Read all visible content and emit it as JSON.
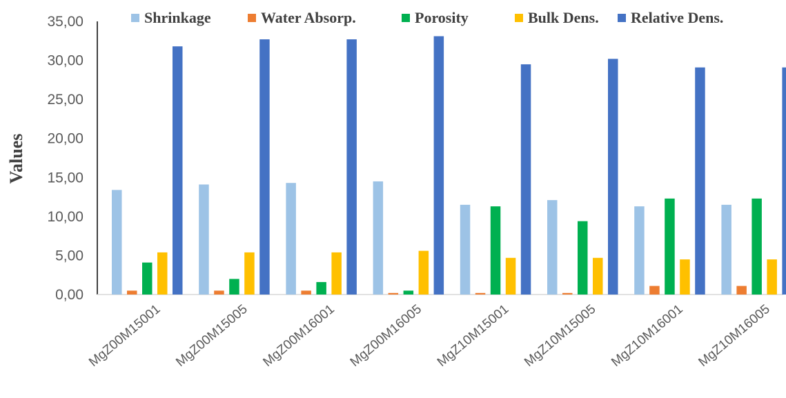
{
  "chart_data": {
    "type": "bar",
    "ylabel": "Values",
    "xlabel": "",
    "ylim": [
      0,
      35
    ],
    "yticks": [
      "0,00",
      "5,00",
      "10,00",
      "15,00",
      "20,00",
      "25,00",
      "30,00",
      "35,00"
    ],
    "categories": [
      "MgZ00M15001",
      "MgZ00M15005",
      "MgZ00M16001",
      "MgZ00M16005",
      "MgZ10M15001",
      "MgZ10M15005",
      "MgZ10M16001",
      "MgZ10M16005"
    ],
    "series": [
      {
        "name": "Shrinkage",
        "color": "#9dc3e6",
        "values": [
          13.4,
          14.1,
          14.3,
          14.5,
          11.5,
          12.1,
          11.3,
          11.5
        ]
      },
      {
        "name": "Water Absorp.",
        "color": "#ed7d31",
        "values": [
          0.5,
          0.5,
          0.5,
          0.2,
          0.2,
          0.2,
          1.1,
          1.1
        ]
      },
      {
        "name": "Porosity",
        "color": "#00b050",
        "values": [
          4.1,
          2.0,
          1.6,
          0.5,
          11.3,
          9.4,
          12.3,
          12.3
        ]
      },
      {
        "name": "Bulk Dens.",
        "color": "#ffc000",
        "values": [
          5.4,
          5.4,
          5.4,
          5.6,
          4.7,
          4.7,
          4.5,
          4.5
        ]
      },
      {
        "name": "Relative Dens.",
        "color": "#4472c4",
        "values": [
          31.8,
          32.7,
          32.7,
          33.1,
          29.5,
          30.2,
          29.1,
          29.1
        ]
      }
    ],
    "legend_position": "top",
    "grid": false
  }
}
